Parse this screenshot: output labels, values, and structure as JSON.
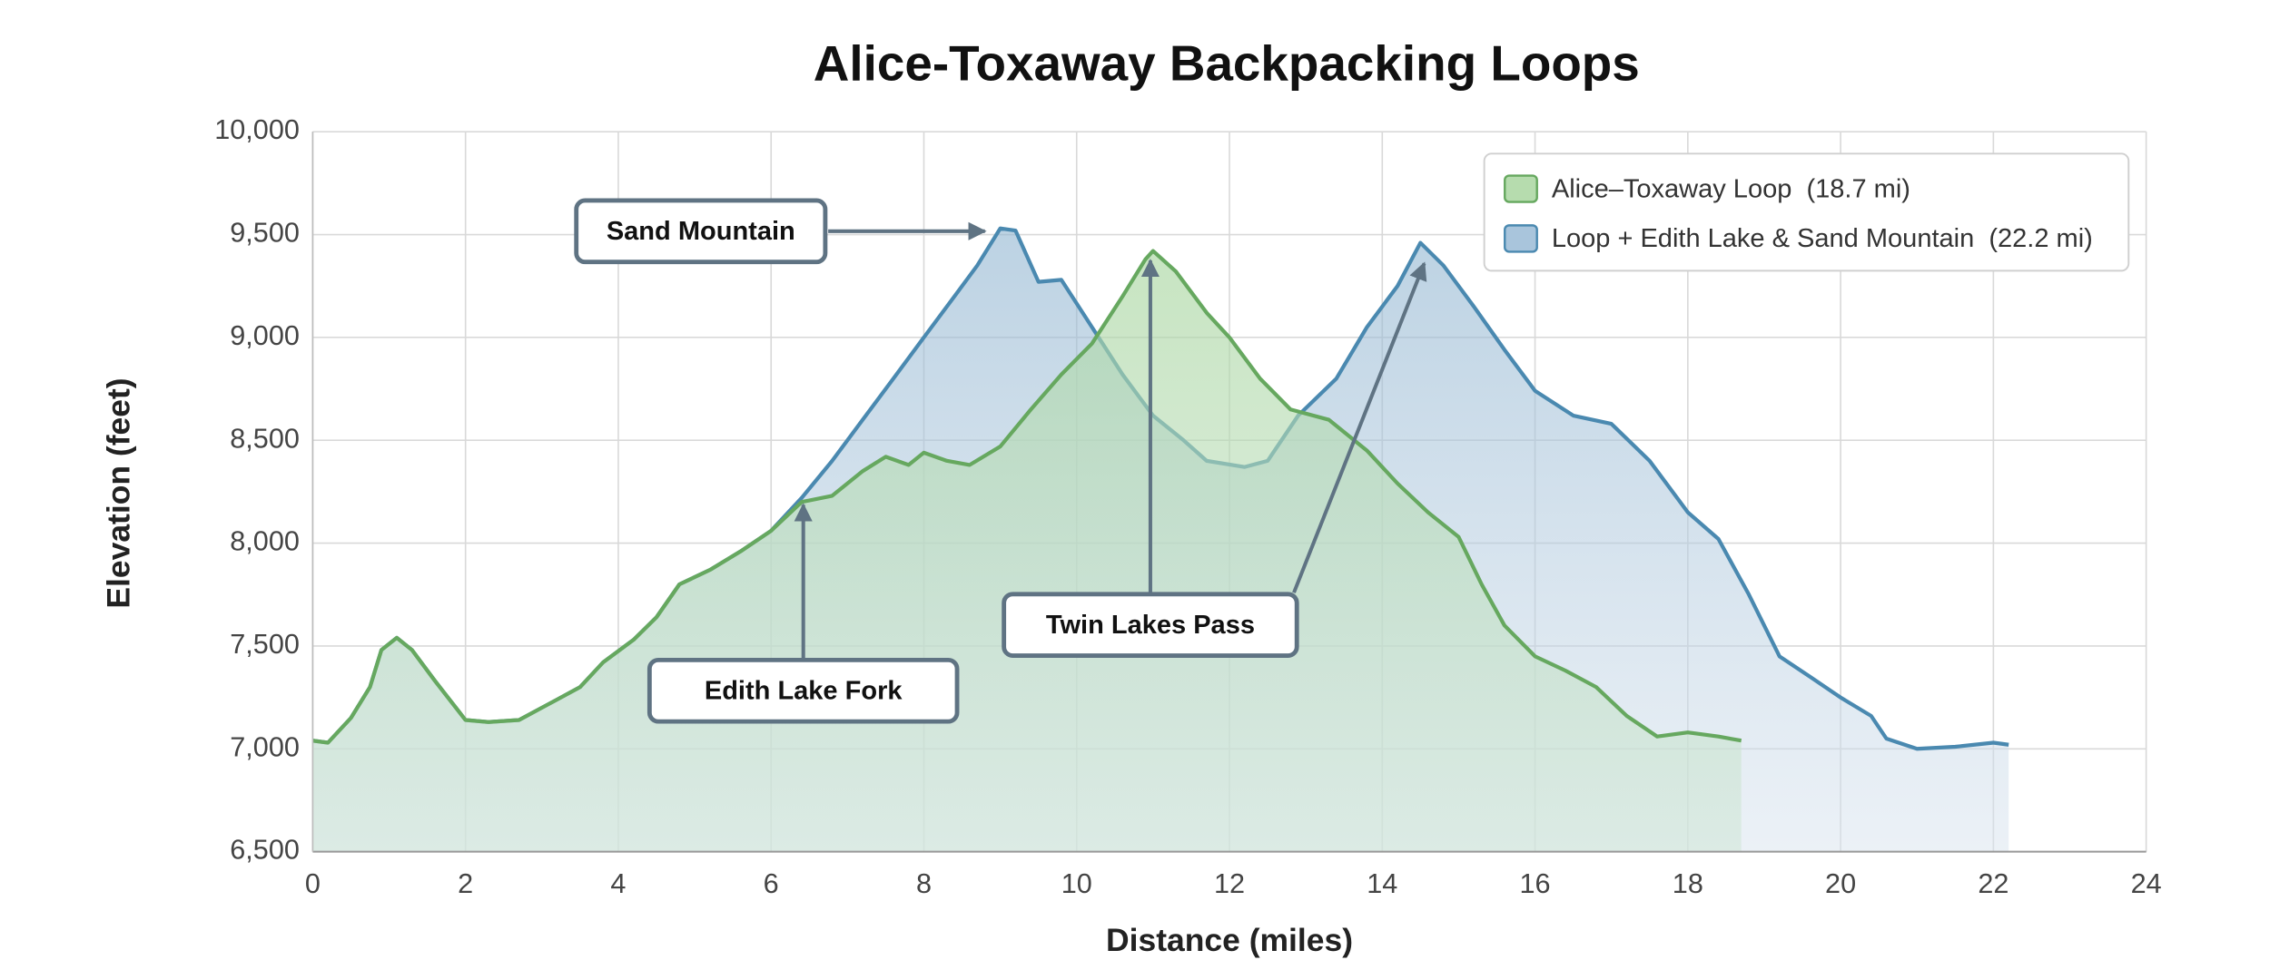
{
  "chart_data": {
    "type": "area",
    "title": "Alice-Toxaway Backpacking Loops",
    "x_label": "Distance (miles)",
    "y_label": "Elevation (feet)",
    "xlim": [
      0,
      24
    ],
    "xticks": [
      0,
      2,
      4,
      6,
      8,
      10,
      12,
      14,
      16,
      18,
      20,
      22,
      24
    ],
    "ylim": [
      6500,
      10000
    ],
    "yticks": [
      {
        "value": 6500,
        "label": "6,500"
      },
      {
        "value": 7000,
        "label": "7,000"
      },
      {
        "value": 7500,
        "label": "7,500"
      },
      {
        "value": 8000,
        "label": "8,000"
      },
      {
        "value": 8500,
        "label": "8,500"
      },
      {
        "value": 9000,
        "label": "9,000"
      },
      {
        "value": 9500,
        "label": "9,500"
      },
      {
        "value": 10000,
        "label": "10,000"
      }
    ],
    "grid": true,
    "legend": "top-right",
    "series": [
      {
        "name": "Alice–Toxaway Loop  (18.7 mi)",
        "color": "#66a85f",
        "x": [
          0,
          0.2,
          0.5,
          0.75,
          0.9,
          1.1,
          1.3,
          1.6,
          2.0,
          2.3,
          2.7,
          3.0,
          3.2,
          3.5,
          3.8,
          4.2,
          4.5,
          4.8,
          5.2,
          5.6,
          6.0,
          6.4,
          6.8,
          7.2,
          7.5,
          7.8,
          8.0,
          8.3,
          8.6,
          9.0,
          9.4,
          9.8,
          10.2,
          10.6,
          10.9,
          11.0,
          11.3,
          11.7,
          12.0,
          12.4,
          12.8,
          13.3,
          13.8,
          14.2,
          14.6,
          15.0,
          15.3,
          15.6,
          16.0,
          16.4,
          16.8,
          17.2,
          17.6,
          18.0,
          18.4,
          18.7
        ],
        "values": [
          7040,
          7030,
          7150,
          7300,
          7480,
          7540,
          7480,
          7330,
          7140,
          7130,
          7140,
          7200,
          7240,
          7300,
          7420,
          7530,
          7640,
          7800,
          7870,
          7960,
          8060,
          8200,
          8230,
          8350,
          8420,
          8380,
          8440,
          8400,
          8380,
          8470,
          8650,
          8820,
          8970,
          9200,
          9380,
          9420,
          9320,
          9120,
          9000,
          8800,
          8650,
          8600,
          8450,
          8290,
          8150,
          8030,
          7800,
          7600,
          7450,
          7380,
          7300,
          7160,
          7060,
          7080,
          7060,
          7040
        ]
      },
      {
        "name": "Loop + Edith Lake & Sand Mountain  (22.2 mi)",
        "color": "#4a89b0",
        "x": [
          0,
          0.2,
          0.5,
          0.75,
          0.9,
          1.1,
          1.3,
          1.6,
          2.0,
          2.3,
          2.7,
          3.0,
          3.2,
          3.5,
          3.8,
          4.2,
          4.5,
          4.8,
          5.2,
          5.6,
          6.0,
          6.4,
          6.8,
          7.2,
          7.6,
          8.0,
          8.4,
          8.7,
          9.0,
          9.2,
          9.5,
          9.8,
          10.2,
          10.6,
          11.0,
          11.4,
          11.7,
          12.2,
          12.5,
          12.9,
          13.4,
          13.8,
          14.2,
          14.5,
          14.8,
          15.2,
          15.6,
          16.0,
          16.5,
          17.0,
          17.5,
          18.0,
          18.4,
          18.8,
          19.2,
          19.6,
          20.0,
          20.4,
          20.6,
          21.0,
          21.5,
          22.0,
          22.2
        ],
        "values": [
          7040,
          7030,
          7150,
          7300,
          7480,
          7540,
          7480,
          7330,
          7140,
          7130,
          7140,
          7200,
          7240,
          7300,
          7420,
          7530,
          7640,
          7800,
          7870,
          7960,
          8060,
          8220,
          8400,
          8600,
          8800,
          9000,
          9200,
          9350,
          9530,
          9520,
          9270,
          9280,
          9050,
          8820,
          8620,
          8500,
          8400,
          8370,
          8400,
          8620,
          8800,
          9050,
          9250,
          9460,
          9350,
          9150,
          8940,
          8740,
          8620,
          8580,
          8400,
          8150,
          8020,
          7750,
          7450,
          7350,
          7250,
          7160,
          7050,
          7000,
          7010,
          7030,
          7020
        ]
      }
    ],
    "annotations": [
      "Sand Mountain",
      "Twin Lakes Pass",
      "Edith Lake Fork"
    ]
  }
}
